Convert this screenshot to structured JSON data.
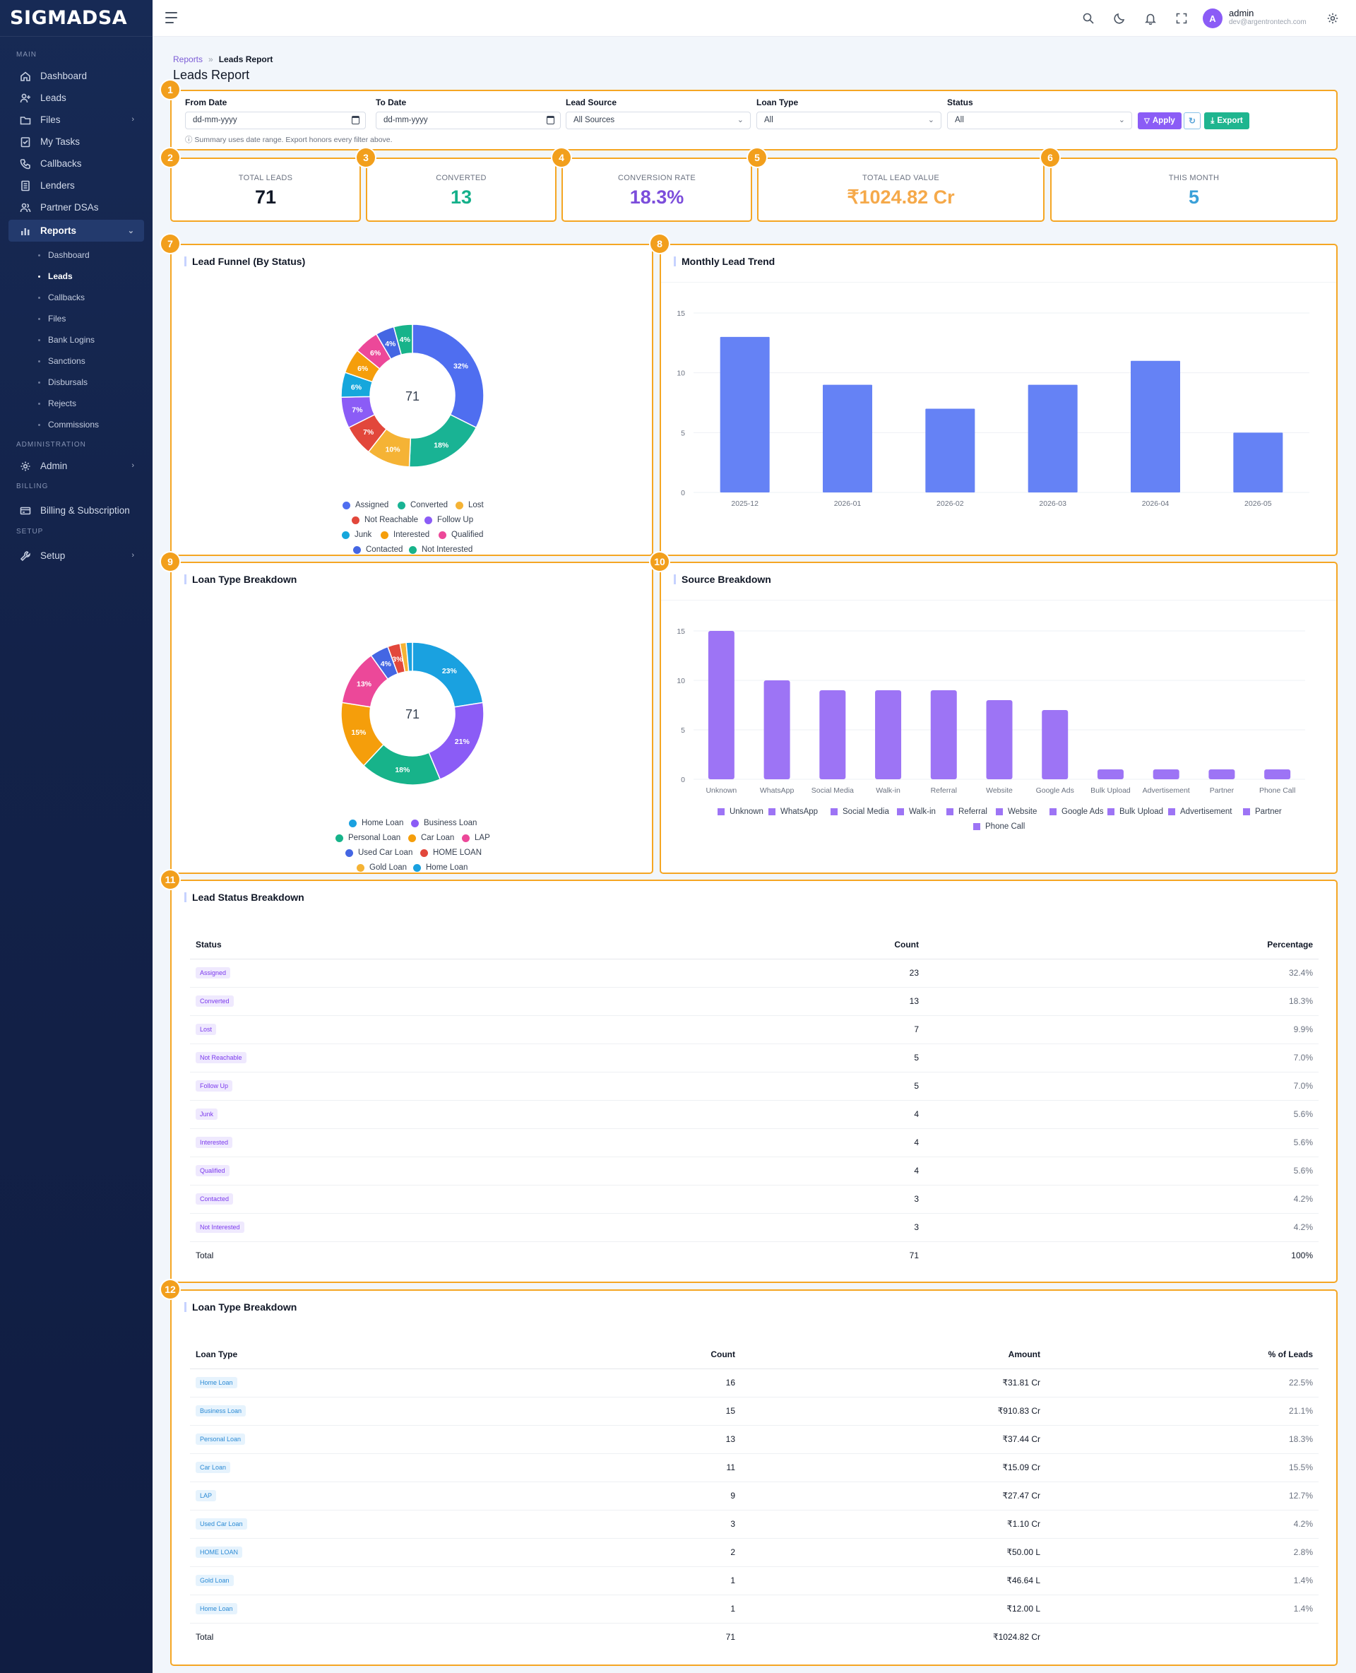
{
  "brand": "SIGMADSA",
  "sidebar": {
    "sections": {
      "main": "MAIN",
      "administration": "ADMINISTRATION",
      "billing": "BILLING",
      "setup": "SETUP"
    },
    "items": [
      "Dashboard",
      "Leads",
      "Files",
      "My Tasks",
      "Callbacks",
      "Lenders",
      "Partner DSAs",
      "Reports"
    ],
    "reports_sub": [
      "Dashboard",
      "Leads",
      "Callbacks",
      "Files",
      "Bank Logins",
      "Sanctions",
      "Disbursals",
      "Rejects",
      "Commissions"
    ],
    "admin": "Admin",
    "billing_item": "Billing & Subscription",
    "setup_item": "Setup"
  },
  "user": {
    "name": "admin",
    "email": "dev@argentrontech.com",
    "initial": "A"
  },
  "breadcrumb": {
    "parent": "Reports",
    "sep": "»",
    "current": "Leads Report"
  },
  "page_title": "Leads Report",
  "filters": {
    "from_label": "From Date",
    "from_value": "dd-mm-yyyy",
    "to_label": "To Date",
    "to_value": "dd-mm-yyyy",
    "source_label": "Lead Source",
    "source_value": "All Sources",
    "loan_label": "Loan Type",
    "loan_value": "All",
    "status_label": "Status",
    "status_value": "All",
    "apply": "Apply",
    "export": "Export",
    "note": "ⓘ Summary uses date range. Export honors every filter above."
  },
  "badges": [
    "1",
    "2",
    "3",
    "4",
    "5",
    "6",
    "7",
    "8",
    "9",
    "10",
    "11",
    "12"
  ],
  "kpis": [
    {
      "label": "TOTAL LEADS",
      "value": "71",
      "color": "#111827"
    },
    {
      "label": "CONVERTED",
      "value": "13",
      "color": "#14b08a"
    },
    {
      "label": "CONVERSION RATE",
      "value": "18.3%",
      "color": "#7c4ddb"
    },
    {
      "label": "TOTAL LEAD VALUE",
      "value": "₹1024.82 Cr",
      "color": "#f5a94a"
    },
    {
      "label": "THIS MONTH",
      "value": "5",
      "color": "#3aa0d8"
    }
  ],
  "cards": {
    "funnel": "Lead Funnel (By Status)",
    "trend": "Monthly Lead Trend",
    "loan": "Loan Type Breakdown",
    "source": "Source Breakdown",
    "status_table": "Lead Status Breakdown",
    "loan_table": "Loan Type Breakdown"
  },
  "chart_data": [
    {
      "type": "pie",
      "title": "Lead Funnel (By Status)",
      "center": "71",
      "labels": [
        "Assigned",
        "Converted",
        "Lost",
        "Not Reachable",
        "Follow Up",
        "Junk",
        "Interested",
        "Qualified",
        "Contacted",
        "Not Interested"
      ],
      "values": [
        23,
        13,
        7,
        5,
        5,
        4,
        4,
        4,
        3,
        3
      ],
      "slice_labels": [
        "32%",
        "18%",
        "10%",
        "7%",
        "7%",
        "6%",
        "6%",
        "6%",
        "4%",
        "4%"
      ],
      "colors": [
        "#4f6ef0",
        "#19b394",
        "#f5b335",
        "#e2473b",
        "#8b5cf6",
        "#16a7dc",
        "#f59e0b",
        "#ec4899",
        "#4466e3",
        "#17b38a"
      ]
    },
    {
      "type": "bar",
      "title": "Monthly Lead Trend",
      "categories": [
        "2025-12",
        "2026-01",
        "2026-02",
        "2026-03",
        "2026-04",
        "2026-05"
      ],
      "values": [
        13,
        9,
        7,
        9,
        11,
        5
      ],
      "ylim": [
        0,
        15
      ],
      "yticks": [
        "0",
        "5",
        "10",
        "15"
      ],
      "color": "#6582f5"
    },
    {
      "type": "pie",
      "title": "Loan Type Breakdown",
      "center": "71",
      "labels": [
        "Home Loan",
        "Business Loan",
        "Personal Loan",
        "Car Loan",
        "LAP",
        "Used Car Loan",
        "HOME LOAN",
        "Gold Loan",
        "Home Loan"
      ],
      "values": [
        16,
        15,
        13,
        11,
        9,
        3,
        2,
        1,
        1
      ],
      "slice_labels": [
        "23%",
        "21%",
        "18%",
        "15%",
        "13%",
        "4%",
        "3%",
        "",
        ""
      ],
      "colors": [
        "#1aa1e0",
        "#8b5cf6",
        "#17b38a",
        "#f59e0b",
        "#ec4899",
        "#4466e3",
        "#e2473b",
        "#f5b335",
        "#1aa1e0"
      ]
    },
    {
      "type": "bar",
      "title": "Source Breakdown",
      "categories": [
        "Unknown",
        "WhatsApp",
        "Social Media",
        "Walk-in",
        "Referral",
        "Website",
        "Google Ads",
        "Bulk Upload",
        "Advertisement",
        "Partner",
        "Phone Call"
      ],
      "values": [
        15,
        10,
        9,
        9,
        9,
        8,
        7,
        1,
        1,
        1,
        1
      ],
      "ylim": [
        0,
        15
      ],
      "yticks": [
        "0",
        "5",
        "10",
        "15"
      ],
      "color": "#9d74f5"
    }
  ],
  "status_table": {
    "headers": [
      "Status",
      "Count",
      "Percentage"
    ],
    "rows": [
      [
        "Assigned",
        "23",
        "32.4%"
      ],
      [
        "Converted",
        "13",
        "18.3%"
      ],
      [
        "Lost",
        "7",
        "9.9%"
      ],
      [
        "Not Reachable",
        "5",
        "7.0%"
      ],
      [
        "Follow Up",
        "5",
        "7.0%"
      ],
      [
        "Junk",
        "4",
        "5.6%"
      ],
      [
        "Interested",
        "4",
        "5.6%"
      ],
      [
        "Qualified",
        "4",
        "5.6%"
      ],
      [
        "Contacted",
        "3",
        "4.2%"
      ],
      [
        "Not Interested",
        "3",
        "4.2%"
      ]
    ],
    "total": [
      "Total",
      "71",
      "100%"
    ]
  },
  "loan_table": {
    "headers": [
      "Loan Type",
      "Count",
      "Amount",
      "% of Leads"
    ],
    "rows": [
      [
        "Home Loan",
        "16",
        "₹31.81 Cr",
        "22.5%"
      ],
      [
        "Business Loan",
        "15",
        "₹910.83 Cr",
        "21.1%"
      ],
      [
        "Personal Loan",
        "13",
        "₹37.44 Cr",
        "18.3%"
      ],
      [
        "Car Loan",
        "11",
        "₹15.09 Cr",
        "15.5%"
      ],
      [
        "LAP",
        "9",
        "₹27.47 Cr",
        "12.7%"
      ],
      [
        "Used Car Loan",
        "3",
        "₹1.10 Cr",
        "4.2%"
      ],
      [
        "HOME LOAN",
        "2",
        "₹50.00 L",
        "2.8%"
      ],
      [
        "Gold Loan",
        "1",
        "₹46.64 L",
        "1.4%"
      ],
      [
        "Home Loan",
        "1",
        "₹12.00 L",
        "1.4%"
      ]
    ],
    "total": [
      "Total",
      "71",
      "₹1024.82 Cr",
      ""
    ]
  }
}
